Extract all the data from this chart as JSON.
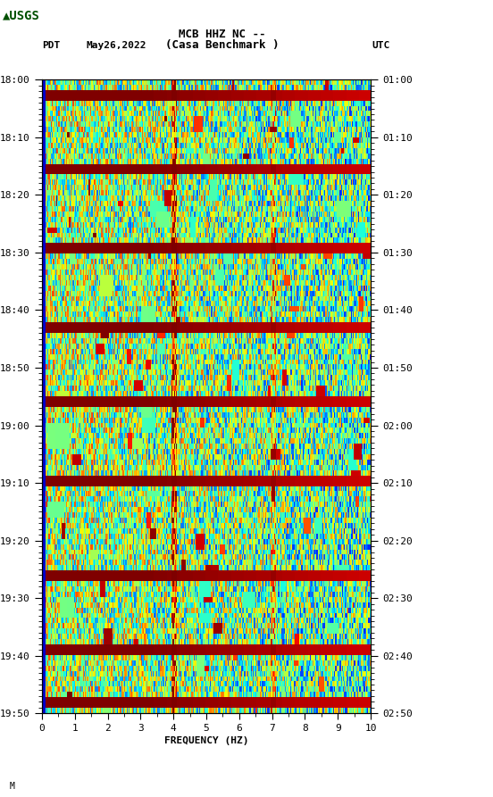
{
  "title_line1": "MCB HHZ NC --",
  "title_line2": "(Casa Benchmark )",
  "date_label": "May26,2022",
  "pdt_label": "PDT",
  "utc_label": "UTC",
  "xlabel": "FREQUENCY (HZ)",
  "freq_min": 0,
  "freq_max": 10,
  "ytick_pdt": [
    "18:00",
    "18:10",
    "18:20",
    "18:30",
    "18:40",
    "18:50",
    "19:00",
    "19:10",
    "19:20",
    "19:30",
    "19:40",
    "19:50"
  ],
  "ytick_utc": [
    "01:00",
    "01:10",
    "01:20",
    "01:30",
    "01:40",
    "01:50",
    "02:00",
    "02:10",
    "02:20",
    "02:30",
    "02:40",
    "02:50"
  ],
  "n_time_bins": 120,
  "n_freq_bins": 300,
  "colormap": "jet",
  "vmin": 0.0,
  "vmax": 1.0,
  "background_color": "#ffffff",
  "logo_color": "#006400",
  "random_seed": 42,
  "annotation_text": "M",
  "black_panel_color": "#000000"
}
